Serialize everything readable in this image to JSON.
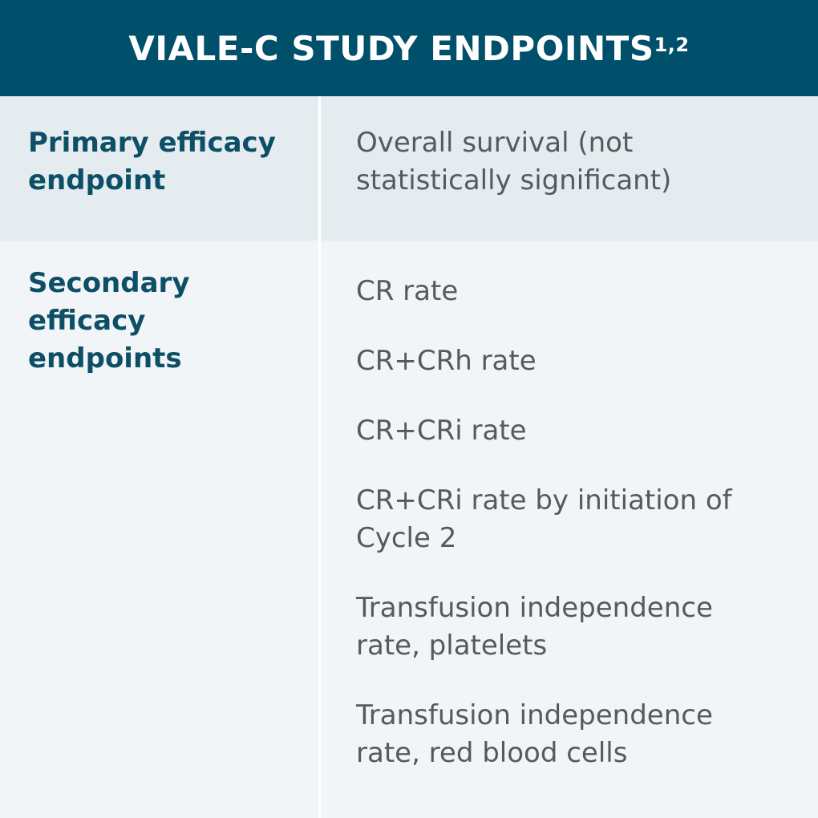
{
  "header": {
    "title": "VIALE-C STUDY ENDPOINTS",
    "superscript": "1,2"
  },
  "rows": [
    {
      "label": "Primary efficacy endpoint",
      "items": [
        "Overall survival (not statistically significant)"
      ]
    },
    {
      "label": "Secondary efficacy endpoints",
      "items": [
        "CR rate",
        "CR+CRh rate",
        "CR+CRi rate",
        "CR+CRi rate by initiation of Cycle 2",
        "Transfusion independence rate, platelets",
        "Transfusion independence rate, red blood cells"
      ]
    }
  ],
  "colors": {
    "header_bg": "#004f6b",
    "label": "#0d4f66",
    "text": "#555a5e",
    "row1_bg": "#e5ecef",
    "row2_bg": "#f1f5f7"
  }
}
